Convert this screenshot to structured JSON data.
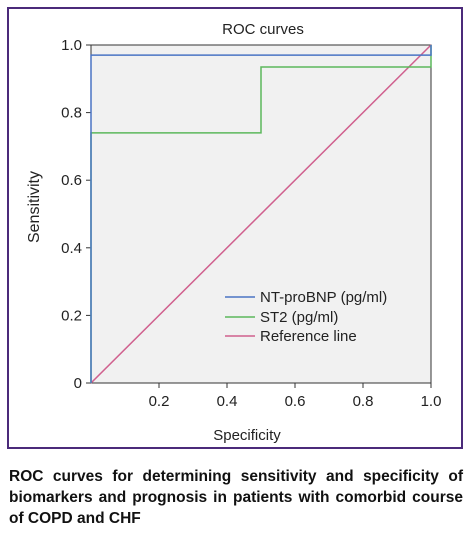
{
  "caption": "ROC curves for determining sensitivity and specificity of biomarkers and prognosis in patients with comorbid course of COPD and CHF",
  "chart_data": {
    "type": "line",
    "title": "ROC curves",
    "xlabel": "Specificity",
    "ylabel": "Sensitivity",
    "xlim": [
      0,
      1
    ],
    "ylim": [
      0,
      1
    ],
    "x_ticks": [
      0.2,
      0.4,
      0.6,
      0.8,
      1.0
    ],
    "x_tick_labels": [
      "0.2",
      "0.4",
      "0.6",
      "0.8",
      "1.0"
    ],
    "y_ticks": [
      0,
      0.2,
      0.4,
      0.6,
      0.8,
      1.0
    ],
    "y_tick_labels": [
      "0",
      "0.2",
      "0.4",
      "0.6",
      "0.8",
      "1.0"
    ],
    "legend_position": "bottom-right",
    "series": [
      {
        "name": "NT-proBNP (pg/ml)",
        "color": "#4a74c4",
        "points": [
          [
            0,
            0
          ],
          [
            0,
            0.97
          ],
          [
            1,
            0.97
          ],
          [
            1,
            1
          ]
        ]
      },
      {
        "name": "ST2 (pg/ml)",
        "color": "#5cb85c",
        "points": [
          [
            0,
            0
          ],
          [
            0,
            0.74
          ],
          [
            0.5,
            0.74
          ],
          [
            0.5,
            0.935
          ],
          [
            1,
            0.935
          ],
          [
            1,
            1
          ]
        ]
      },
      {
        "name": "Reference line",
        "color": "#d0608e",
        "points": [
          [
            0,
            0
          ],
          [
            1,
            1
          ]
        ]
      }
    ]
  }
}
